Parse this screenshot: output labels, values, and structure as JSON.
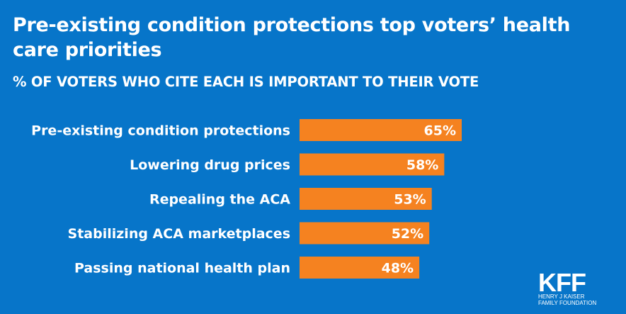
{
  "chart_data": {
    "type": "bar",
    "orientation": "horizontal",
    "title": "Pre-existing condition protections top voters’ health care priorities",
    "subtitle": "% OF VOTERS WHO CITE EACH IS IMPORTANT TO THEIR VOTE",
    "categories": [
      "Pre-existing condition protections",
      "Lowering drug prices",
      "Repealing the ACA",
      "Stabilizing ACA marketplaces",
      "Passing national health plan"
    ],
    "values": [
      65,
      58,
      53,
      52,
      48
    ],
    "value_labels": [
      "65%",
      "58%",
      "53%",
      "52%",
      "48%"
    ],
    "xlim": [
      0,
      100
    ],
    "grid": false,
    "colors": {
      "background": "#0775c9",
      "bar": "#f58220"
    }
  },
  "logo": {
    "mark": "KFF",
    "line1": "HENRY J KAISER",
    "line2": "FAMILY FOUNDATION"
  }
}
